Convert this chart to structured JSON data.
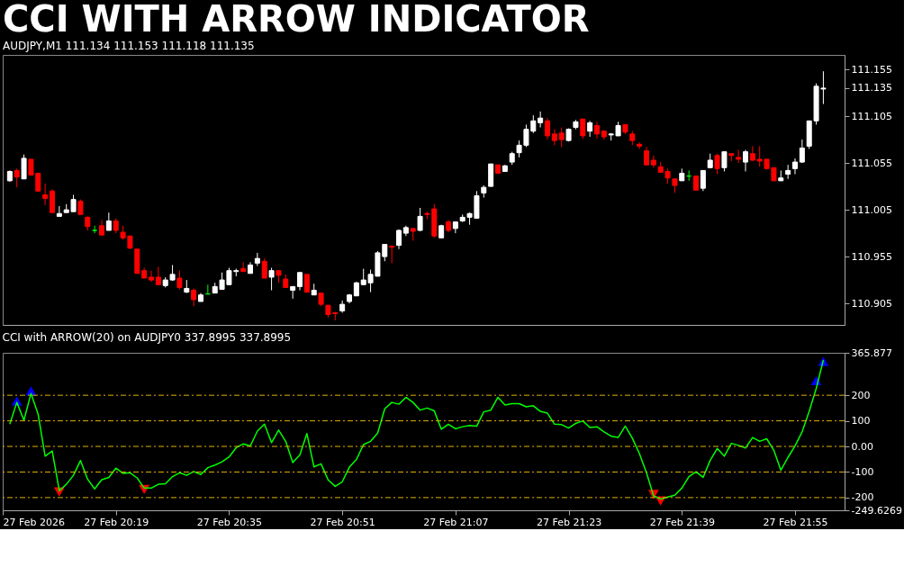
{
  "chart_data": [
    {
      "type": "candlestick",
      "title": "CCI WITH ARROW INDICATOR",
      "subtitle": "AUDJPY,M1 111.134 111.153 111.118 111.135",
      "x": [
        "2026-02-27T20:04",
        "2026-02-27T20:05",
        "2026-02-27T20:06",
        "2026-02-27T20:07",
        "2026-02-27T20:08",
        "2026-02-27T20:09",
        "2026-02-27T20:10",
        "2026-02-27T20:11",
        "2026-02-27T20:12",
        "2026-02-27T20:13",
        "2026-02-27T20:14",
        "2026-02-27T20:15",
        "2026-02-27T20:16",
        "2026-02-27T20:17",
        "2026-02-27T20:18",
        "2026-02-27T20:19",
        "2026-02-27T20:20",
        "2026-02-27T20:21",
        "2026-02-27T20:22",
        "2026-02-27T20:23",
        "2026-02-27T20:24",
        "2026-02-27T20:25",
        "2026-02-27T20:26",
        "2026-02-27T20:27",
        "2026-02-27T20:28",
        "2026-02-27T20:29",
        "2026-02-27T20:30",
        "2026-02-27T20:31",
        "2026-02-27T20:32",
        "2026-02-27T20:33",
        "2026-02-27T20:34",
        "2026-02-27T20:35",
        "2026-02-27T20:36",
        "2026-02-27T20:37",
        "2026-02-27T20:38",
        "2026-02-27T20:39",
        "2026-02-27T20:40",
        "2026-02-27T20:41",
        "2026-02-27T20:42",
        "2026-02-27T20:43",
        "2026-02-27T20:44",
        "2026-02-27T20:45",
        "2026-02-27T20:46",
        "2026-02-27T20:47",
        "2026-02-27T20:48",
        "2026-02-27T20:49",
        "2026-02-27T20:50",
        "2026-02-27T20:51",
        "2026-02-27T20:52",
        "2026-02-27T20:53",
        "2026-02-27T20:54",
        "2026-02-27T20:55",
        "2026-02-27T20:56",
        "2026-02-27T20:57",
        "2026-02-27T20:58",
        "2026-02-27T20:59",
        "2026-02-27T21:00",
        "2026-02-27T21:01",
        "2026-02-27T21:02",
        "2026-02-27T21:03",
        "2026-02-27T21:04",
        "2026-02-27T21:05",
        "2026-02-27T21:06",
        "2026-02-27T21:07",
        "2026-02-27T21:08",
        "2026-02-27T21:09",
        "2026-02-27T21:10",
        "2026-02-27T21:11",
        "2026-02-27T21:12",
        "2026-02-27T21:13",
        "2026-02-27T21:14",
        "2026-02-27T21:15",
        "2026-02-27T21:16",
        "2026-02-27T21:17",
        "2026-02-27T21:18",
        "2026-02-27T21:19",
        "2026-02-27T21:20",
        "2026-02-27T21:21",
        "2026-02-27T21:22",
        "2026-02-27T21:23",
        "2026-02-27T21:24",
        "2026-02-27T21:25",
        "2026-02-27T21:26",
        "2026-02-27T21:27",
        "2026-02-27T21:28",
        "2026-02-27T21:29",
        "2026-02-27T21:30",
        "2026-02-27T21:31",
        "2026-02-27T21:32",
        "2026-02-27T21:33",
        "2026-02-27T21:34",
        "2026-02-27T21:35",
        "2026-02-27T21:36",
        "2026-02-27T21:37",
        "2026-02-27T21:38",
        "2026-02-27T21:39",
        "2026-02-27T21:40",
        "2026-02-27T21:41",
        "2026-02-27T21:42",
        "2026-02-27T21:43",
        "2026-02-27T21:44",
        "2026-02-27T21:45",
        "2026-02-27T21:46",
        "2026-02-27T21:47",
        "2026-02-27T21:48",
        "2026-02-27T21:49",
        "2026-02-27T21:50",
        "2026-02-27T21:51",
        "2026-02-27T21:52",
        "2026-02-27T21:53",
        "2026-02-27T21:54",
        "2026-02-27T21:55",
        "2026-02-27T21:56",
        "2026-02-27T21:57",
        "2026-02-27T21:58",
        "2026-02-27T21:59"
      ],
      "ohlc": [
        [
          111.036,
          111.047,
          111.035,
          111.046
        ],
        [
          111.047,
          111.049,
          111.029,
          111.04
        ],
        [
          111.038,
          111.064,
          111.038,
          111.06
        ],
        [
          111.059,
          111.059,
          111.042,
          111.042
        ],
        [
          111.044,
          111.044,
          111.025,
          111.025
        ],
        [
          111.021,
          111.033,
          111.01,
          111.017
        ],
        [
          111.025,
          111.027,
          111.002,
          111.002
        ],
        [
          110.998,
          111.009,
          110.998,
          111.001
        ],
        [
          111.002,
          111.011,
          111.002,
          111.005
        ],
        [
          111.003,
          111.021,
          111.003,
          111.016
        ],
        [
          111.014,
          111.016,
          111.0,
          111.0
        ],
        [
          110.997,
          110.998,
          110.983,
          110.987
        ],
        [
          110.983,
          110.988,
          110.98,
          110.983
        ],
        [
          110.988,
          110.994,
          110.978,
          110.978
        ],
        [
          110.983,
          111.002,
          110.983,
          110.993
        ],
        [
          110.993,
          110.996,
          110.98,
          110.983
        ],
        [
          110.981,
          110.988,
          110.973,
          110.975
        ],
        [
          110.977,
          110.977,
          110.963,
          110.964
        ],
        [
          110.963,
          110.963,
          110.937,
          110.937
        ],
        [
          110.94,
          110.943,
          110.932,
          110.932
        ],
        [
          110.933,
          110.94,
          110.928,
          110.93
        ],
        [
          110.933,
          110.944,
          110.925,
          110.925
        ],
        [
          110.924,
          110.933,
          110.922,
          110.93
        ],
        [
          110.93,
          110.946,
          110.929,
          110.936
        ],
        [
          110.932,
          110.94,
          110.92,
          110.922
        ],
        [
          110.917,
          110.93,
          110.916,
          110.921
        ],
        [
          110.919,
          110.921,
          110.902,
          110.909
        ],
        [
          110.907,
          110.916,
          110.907,
          110.914
        ],
        [
          110.915,
          110.925,
          110.915,
          110.915
        ],
        [
          110.916,
          110.927,
          110.916,
          110.923
        ],
        [
          110.92,
          110.938,
          110.92,
          110.93
        ],
        [
          110.925,
          110.943,
          110.925,
          110.94
        ],
        [
          110.939,
          110.942,
          110.934,
          110.94
        ],
        [
          110.942,
          110.949,
          110.939,
          110.939
        ],
        [
          110.937,
          110.949,
          110.937,
          110.946
        ],
        [
          110.948,
          110.959,
          110.945,
          110.953
        ],
        [
          110.95,
          110.953,
          110.932,
          110.932
        ],
        [
          110.933,
          110.943,
          110.919,
          110.94
        ],
        [
          110.94,
          110.94,
          110.927,
          110.935
        ],
        [
          110.931,
          110.936,
          110.922,
          110.922
        ],
        [
          110.919,
          110.923,
          110.91,
          110.923
        ],
        [
          110.923,
          110.938,
          110.919,
          110.938
        ],
        [
          110.936,
          110.936,
          110.917,
          110.917
        ],
        [
          110.914,
          110.926,
          110.914,
          110.919
        ],
        [
          110.916,
          110.916,
          110.902,
          110.904
        ],
        [
          110.903,
          110.903,
          110.89,
          110.893
        ],
        [
          110.895,
          110.896,
          110.887,
          110.894
        ],
        [
          110.897,
          110.908,
          110.895,
          110.904
        ],
        [
          110.907,
          110.915,
          110.905,
          110.914
        ],
        [
          110.913,
          110.928,
          110.913,
          110.927
        ],
        [
          110.925,
          110.942,
          110.925,
          110.93
        ],
        [
          110.927,
          110.941,
          110.917,
          110.936
        ],
        [
          110.934,
          110.961,
          110.934,
          110.959
        ],
        [
          110.955,
          110.968,
          110.95,
          110.968
        ],
        [
          110.966,
          110.967,
          110.948,
          110.965
        ],
        [
          110.967,
          110.984,
          110.963,
          110.983
        ],
        [
          110.98,
          110.988,
          110.977,
          110.986
        ],
        [
          110.985,
          110.985,
          110.972,
          110.982
        ],
        [
          110.983,
          111.007,
          110.982,
          110.998
        ],
        [
          111.001,
          111.003,
          110.995,
          111.0
        ],
        [
          111.006,
          111.011,
          110.975,
          110.977
        ],
        [
          110.975,
          110.989,
          110.975,
          110.988
        ],
        [
          110.992,
          110.994,
          110.981,
          110.983
        ],
        [
          110.985,
          110.992,
          110.98,
          110.992
        ],
        [
          110.993,
          111.0,
          110.992,
          110.997
        ],
        [
          110.997,
          111.002,
          110.989,
          111.001
        ],
        [
          110.996,
          111.025,
          110.996,
          111.02
        ],
        [
          111.023,
          111.031,
          111.018,
          111.029
        ],
        [
          111.03,
          111.054,
          111.03,
          111.054
        ],
        [
          111.053,
          111.053,
          111.044,
          111.044
        ],
        [
          111.046,
          111.053,
          111.046,
          111.052
        ],
        [
          111.056,
          111.067,
          111.053,
          111.065
        ],
        [
          111.066,
          111.079,
          111.061,
          111.074
        ],
        [
          111.074,
          111.096,
          111.072,
          111.091
        ],
        [
          111.089,
          111.106,
          111.087,
          111.1
        ],
        [
          111.098,
          111.11,
          111.093,
          111.103
        ],
        [
          111.1,
          111.103,
          111.08,
          111.084
        ],
        [
          111.086,
          111.091,
          111.074,
          111.079
        ],
        [
          111.087,
          111.093,
          111.072,
          111.08
        ],
        [
          111.079,
          111.092,
          111.078,
          111.091
        ],
        [
          111.093,
          111.101,
          111.091,
          111.099
        ],
        [
          111.102,
          111.102,
          111.081,
          111.084
        ],
        [
          111.089,
          111.1,
          111.083,
          111.098
        ],
        [
          111.095,
          111.099,
          111.081,
          111.086
        ],
        [
          111.089,
          111.09,
          111.08,
          111.083
        ],
        [
          111.085,
          111.087,
          111.079,
          111.086
        ],
        [
          111.084,
          111.099,
          111.084,
          111.095
        ],
        [
          111.096,
          111.096,
          111.086,
          111.088
        ],
        [
          111.086,
          111.089,
          111.074,
          111.079
        ],
        [
          111.075,
          111.077,
          111.07,
          111.073
        ],
        [
          111.068,
          111.072,
          111.053,
          111.053
        ],
        [
          111.058,
          111.063,
          111.05,
          111.053
        ],
        [
          111.051,
          111.056,
          111.045,
          111.045
        ],
        [
          111.046,
          111.049,
          111.033,
          111.039
        ],
        [
          111.038,
          111.038,
          111.023,
          111.031
        ],
        [
          111.036,
          111.049,
          111.036,
          111.044
        ],
        [
          111.041,
          111.047,
          111.036,
          111.041
        ],
        [
          111.041,
          111.041,
          111.026,
          111.026
        ],
        [
          111.028,
          111.047,
          111.025,
          111.047
        ],
        [
          111.05,
          111.065,
          111.05,
          111.058
        ],
        [
          111.063,
          111.065,
          111.043,
          111.049
        ],
        [
          111.05,
          111.067,
          111.046,
          111.067
        ],
        [
          111.065,
          111.065,
          111.057,
          111.063
        ],
        [
          111.061,
          111.069,
          111.055,
          111.059
        ],
        [
          111.056,
          111.069,
          111.046,
          111.067
        ],
        [
          111.065,
          111.073,
          111.057,
          111.058
        ],
        [
          111.059,
          111.073,
          111.051,
          111.057
        ],
        [
          111.059,
          111.059,
          111.048,
          111.049
        ],
        [
          111.05,
          111.05,
          111.036,
          111.036
        ],
        [
          111.036,
          111.047,
          111.036,
          111.039
        ],
        [
          111.043,
          111.053,
          111.038,
          111.047
        ],
        [
          111.049,
          111.06,
          111.043,
          111.056
        ],
        [
          111.056,
          111.08,
          111.055,
          111.071
        ],
        [
          111.073,
          111.1,
          111.07,
          111.1
        ],
        [
          111.1,
          111.14,
          111.096,
          111.137
        ],
        [
          111.134,
          111.153,
          111.118,
          111.135
        ]
      ],
      "colors": [
        "#ffffff",
        "#ff0000",
        "#ffffff",
        "#ff0000",
        "#ff0000",
        "#ff0000",
        "#ff0000",
        "#ffffff",
        "#ffffff",
        "#ffffff",
        "#ff0000",
        "#ff0000",
        "#00ff00",
        "#ff0000",
        "#ffffff",
        "#ff0000",
        "#ff0000",
        "#ff0000",
        "#ff0000",
        "#ff0000",
        "#ff0000",
        "#ff0000",
        "#ffffff",
        "#ffffff",
        "#ff0000",
        "#ffffff",
        "#ff0000",
        "#ffffff",
        "#00ff00",
        "#ffffff",
        "#ffffff",
        "#ffffff",
        "#ffffff",
        "#ff0000",
        "#ffffff",
        "#ffffff",
        "#ff0000",
        "#ffffff",
        "#ff0000",
        "#ff0000",
        "#ffffff",
        "#ffffff",
        "#ff0000",
        "#ffffff",
        "#ff0000",
        "#ff0000",
        "#ff0000",
        "#ffffff",
        "#ffffff",
        "#ffffff",
        "#ffffff",
        "#ffffff",
        "#ffffff",
        "#ffffff",
        "#ff0000",
        "#ffffff",
        "#ffffff",
        "#ff0000",
        "#ffffff",
        "#ff0000",
        "#ff0000",
        "#ffffff",
        "#ff0000",
        "#ffffff",
        "#ffffff",
        "#ffffff",
        "#ffffff",
        "#ffffff",
        "#ffffff",
        "#ff0000",
        "#ffffff",
        "#ffffff",
        "#ffffff",
        "#ffffff",
        "#ffffff",
        "#ffffff",
        "#ff0000",
        "#ff0000",
        "#ff0000",
        "#ffffff",
        "#ffffff",
        "#ff0000",
        "#ffffff",
        "#ff0000",
        "#ff0000",
        "#ffffff",
        "#ffffff",
        "#ff0000",
        "#ff0000",
        "#ff0000",
        "#ff0000",
        "#ff0000",
        "#ff0000",
        "#ff0000",
        "#ff0000",
        "#ffffff",
        "#00ff00",
        "#ff0000",
        "#ffffff",
        "#ffffff",
        "#ff0000",
        "#ffffff",
        "#ff0000",
        "#ff0000",
        "#ffffff",
        "#ff0000",
        "#ff0000",
        "#ff0000",
        "#ff0000",
        "#ffffff",
        "#ffffff",
        "#ffffff",
        "#ffffff",
        "#ffffff",
        "#ffffff",
        "#ffffff"
      ],
      "xlim": [
        "2026-02-27T20:03",
        "2026-02-27T22:02"
      ],
      "ylim": [
        110.882,
        111.1705
      ],
      "yticks": [
        111.155,
        111.135,
        111.105,
        111.055,
        111.005,
        110.955,
        110.905
      ],
      "tick_labels": "y"
    },
    {
      "type": "line",
      "title": "CCI with ARROW(20) on AUDJPY0 337.8995 337.8995",
      "x": [
        "2026-02-27T20:04",
        "2026-02-27T20:05",
        "2026-02-27T20:06",
        "2026-02-27T20:07",
        "2026-02-27T20:08",
        "2026-02-27T20:09",
        "2026-02-27T20:10",
        "2026-02-27T20:11",
        "2026-02-27T20:12",
        "2026-02-27T20:13",
        "2026-02-27T20:14",
        "2026-02-27T20:15",
        "2026-02-27T20:16",
        "2026-02-27T20:17",
        "2026-02-27T20:18",
        "2026-02-27T20:19",
        "2026-02-27T20:20",
        "2026-02-27T20:21",
        "2026-02-27T20:22",
        "2026-02-27T20:23",
        "2026-02-27T20:24",
        "2026-02-27T20:25",
        "2026-02-27T20:26",
        "2026-02-27T20:27",
        "2026-02-27T20:28",
        "2026-02-27T20:29",
        "2026-02-27T20:30",
        "2026-02-27T20:31",
        "2026-02-27T20:32",
        "2026-02-27T20:33",
        "2026-02-27T20:34",
        "2026-02-27T20:35",
        "2026-02-27T20:36",
        "2026-02-27T20:37",
        "2026-02-27T20:38",
        "2026-02-27T20:39",
        "2026-02-27T20:40",
        "2026-02-27T20:41",
        "2026-02-27T20:42",
        "2026-02-27T20:43",
        "2026-02-27T20:44",
        "2026-02-27T20:45",
        "2026-02-27T20:46",
        "2026-02-27T20:47",
        "2026-02-27T20:48",
        "2026-02-27T20:49",
        "2026-02-27T20:50",
        "2026-02-27T20:51",
        "2026-02-27T20:52",
        "2026-02-27T20:53",
        "2026-02-27T20:54",
        "2026-02-27T20:55",
        "2026-02-27T20:56",
        "2026-02-27T20:57",
        "2026-02-27T20:58",
        "2026-02-27T20:59",
        "2026-02-27T21:00",
        "2026-02-27T21:01",
        "2026-02-27T21:02",
        "2026-02-27T21:03",
        "2026-02-27T21:04",
        "2026-02-27T21:05",
        "2026-02-27T21:06",
        "2026-02-27T21:07",
        "2026-02-27T21:08",
        "2026-02-27T21:09",
        "2026-02-27T21:10",
        "2026-02-27T21:11",
        "2026-02-27T21:12",
        "2026-02-27T21:13",
        "2026-02-27T21:14",
        "2026-02-27T21:15",
        "2026-02-27T21:16",
        "2026-02-27T21:17",
        "2026-02-27T21:18",
        "2026-02-27T21:19",
        "2026-02-27T21:20",
        "2026-02-27T21:21",
        "2026-02-27T21:22",
        "2026-02-27T21:23",
        "2026-02-27T21:24",
        "2026-02-27T21:25",
        "2026-02-27T21:26",
        "2026-02-27T21:27",
        "2026-02-27T21:28",
        "2026-02-27T21:29",
        "2026-02-27T21:30",
        "2026-02-27T21:31",
        "2026-02-27T21:32",
        "2026-02-27T21:33",
        "2026-02-27T21:34",
        "2026-02-27T21:35",
        "2026-02-27T21:36",
        "2026-02-27T21:37",
        "2026-02-27T21:38",
        "2026-02-27T21:39",
        "2026-02-27T21:40",
        "2026-02-27T21:41",
        "2026-02-27T21:42",
        "2026-02-27T21:43",
        "2026-02-27T21:44",
        "2026-02-27T21:45",
        "2026-02-27T21:46",
        "2026-02-27T21:47",
        "2026-02-27T21:48",
        "2026-02-27T21:49",
        "2026-02-27T21:50",
        "2026-02-27T21:51",
        "2026-02-27T21:52",
        "2026-02-27T21:53",
        "2026-02-27T21:54",
        "2026-02-27T21:55",
        "2026-02-27T21:56",
        "2026-02-27T21:57",
        "2026-02-27T21:58",
        "2026-02-27T21:59"
      ],
      "xlim": [
        "2026-02-27T20:03",
        "2026-02-27T22:02"
      ],
      "xticks": [
        {
          "value": "2026-02-27T20:03",
          "label": "27 Feb 2026"
        },
        {
          "value": "2026-02-27T20:19",
          "label": "27 Feb 20:19"
        },
        {
          "value": "2026-02-27T20:35",
          "label": "27 Feb 20:35"
        },
        {
          "value": "2026-02-27T20:51",
          "label": "27 Feb 20:51"
        },
        {
          "value": "2026-02-27T21:07",
          "label": "27 Feb 21:07"
        },
        {
          "value": "2026-02-27T21:23",
          "label": "27 Feb 21:23"
        },
        {
          "value": "2026-02-27T21:39",
          "label": "27 Feb 21:39"
        },
        {
          "value": "2026-02-27T21:55",
          "label": "27 Feb 21:55"
        }
      ],
      "ylim": [
        -249.6269,
        365.877
      ],
      "yticks": [
        365.877,
        200,
        100,
        {
          "value": 0,
          "label": "0.00"
        },
        -100,
        -200,
        -249.6269
      ],
      "series": [
        {
          "color": "#00ff00",
          "values": [
            87,
            172,
            102,
            207,
            127,
            -38,
            -18,
            -173,
            -148,
            -113,
            -55,
            -128,
            -166,
            -130,
            -121,
            -85,
            -105,
            -103,
            -123,
            -163,
            -163,
            -148,
            -146,
            -118,
            -103,
            -113,
            -98,
            -110,
            -83,
            -73,
            -60,
            -41,
            -5,
            10,
            2,
            60,
            87,
            15,
            64,
            20,
            -63,
            -33,
            50,
            -80,
            -68,
            -131,
            -156,
            -138,
            -81,
            -51,
            7,
            20,
            52,
            147,
            172,
            165,
            192,
            172,
            142,
            150,
            139,
            67,
            87,
            69,
            77,
            82,
            79,
            135,
            142,
            192,
            162,
            167,
            167,
            155,
            159,
            137,
            130,
            87,
            85,
            72,
            90,
            100,
            74,
            77,
            57,
            40,
            35,
            80,
            32,
            -28,
            -103,
            -193,
            -206,
            -198,
            -191,
            -163,
            -118,
            -99,
            -121,
            -55,
            -8,
            -38,
            12,
            4,
            -6,
            35,
            20,
            30,
            -15,
            -93,
            -43,
            2,
            57,
            137,
            227,
            337.8995
          ]
        },
        {
          "type": "scatter",
          "color": "#0000ff",
          "marker": "triangle",
          "x": [
            "2026-02-27T20:05",
            "2026-02-27T20:07",
            "2026-02-27T21:58",
            "2026-02-27T21:59"
          ],
          "values": [
            177,
            217,
            257,
            332
          ]
        },
        {
          "type": "scatter",
          "color": "#ff0000",
          "marker": "triangle",
          "x": [
            "2026-02-27T20:11",
            "2026-02-27T20:23",
            "2026-02-27T21:35",
            "2026-02-27T21:36"
          ],
          "values": [
            -178,
            -168,
            -188,
            -213
          ]
        }
      ],
      "ref_lines": [
        {
          "axis": "y",
          "value": 200,
          "color": "#e0b000",
          "line_style": "dashed"
        },
        {
          "axis": "y",
          "value": 100,
          "color": "#e0b000",
          "line_style": "dashed"
        },
        {
          "axis": "y",
          "value": 0,
          "color": "#e0b000",
          "line_style": "dashed"
        },
        {
          "axis": "y",
          "value": -100,
          "color": "#e0b000",
          "line_style": "dashed"
        },
        {
          "axis": "y",
          "value": -200,
          "color": "#e0b000",
          "line_style": "dashed"
        }
      ]
    }
  ]
}
